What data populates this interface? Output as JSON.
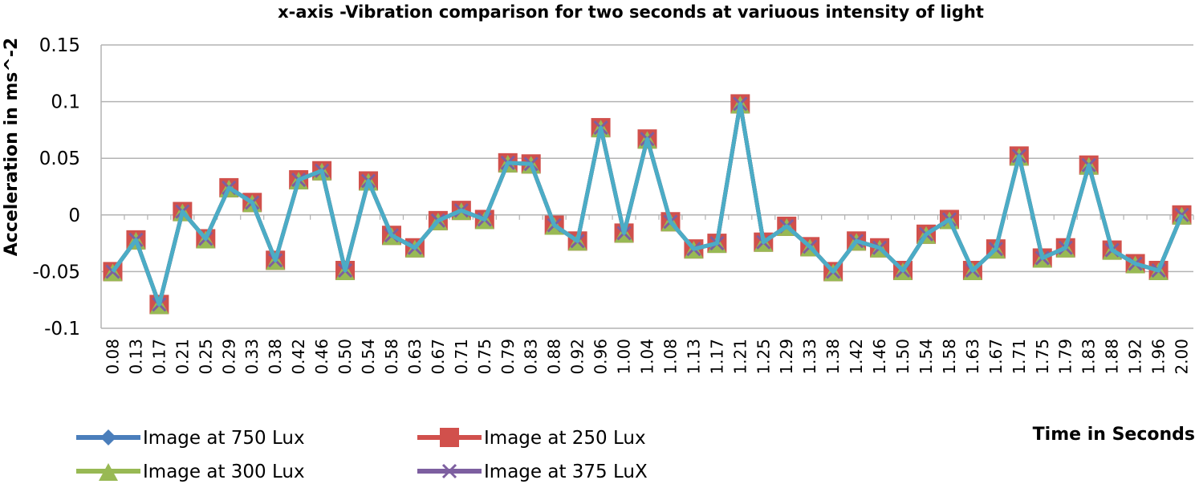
{
  "chart_data": {
    "type": "line",
    "title": "x-axis -Vibration comparison for two seconds at variuous intensity of light",
    "xlabel": "Time in Seconds",
    "ylabel": "Acceleration in ms^-2",
    "ylim": [
      -0.1,
      0.15
    ],
    "yticks": [
      "0.15",
      "0.1",
      "0.05",
      "0",
      "-0.05",
      "-0.1"
    ],
    "ytick_values": [
      0.15,
      0.1,
      0.05,
      0,
      -0.05,
      -0.1
    ],
    "grid": true,
    "legend_position": "bottom",
    "categories": [
      "0.08",
      "0.13",
      "0.17",
      "0.21",
      "0.25",
      "0.29",
      "0.33",
      "0.38",
      "0.42",
      "0.46",
      "0.50",
      "0.54",
      "0.58",
      "0.63",
      "0.67",
      "0.71",
      "0.75",
      "0.79",
      "0.83",
      "0.88",
      "0.92",
      "0.96",
      "1.00",
      "1.04",
      "1.08",
      "1.13",
      "1.17",
      "1.21",
      "1.25",
      "1.29",
      "1.33",
      "1.38",
      "1.42",
      "1.46",
      "1.50",
      "1.54",
      "1.58",
      "1.63",
      "1.67",
      "1.71",
      "1.75",
      "1.79",
      "1.83",
      "1.88",
      "1.92",
      "1.96",
      "2.00"
    ],
    "series": [
      {
        "name": "Image at 750 Lux",
        "color": "#4a7ebb",
        "marker": "diamond",
        "values": [
          -0.05,
          -0.022,
          -0.079,
          0.003,
          -0.021,
          0.024,
          0.011,
          -0.04,
          0.031,
          0.039,
          -0.049,
          0.03,
          -0.018,
          -0.029,
          -0.005,
          0.004,
          -0.004,
          0.046,
          0.045,
          -0.009,
          -0.023,
          0.077,
          -0.016,
          0.067,
          -0.006,
          -0.03,
          -0.025,
          0.098,
          -0.024,
          -0.01,
          -0.028,
          -0.05,
          -0.023,
          -0.029,
          -0.049,
          -0.017,
          -0.004,
          -0.049,
          -0.03,
          0.052,
          -0.038,
          -0.029,
          0.044,
          -0.031,
          -0.043,
          -0.049,
          0.0
        ]
      },
      {
        "name": "Image at 250 Lux",
        "color": "#d1504c",
        "marker": "square",
        "values": [
          -0.05,
          -0.022,
          -0.079,
          0.003,
          -0.021,
          0.024,
          0.011,
          -0.04,
          0.031,
          0.039,
          -0.049,
          0.03,
          -0.018,
          -0.029,
          -0.005,
          0.004,
          -0.004,
          0.046,
          0.045,
          -0.009,
          -0.023,
          0.077,
          -0.016,
          0.067,
          -0.006,
          -0.03,
          -0.025,
          0.098,
          -0.024,
          -0.01,
          -0.028,
          -0.05,
          -0.023,
          -0.029,
          -0.049,
          -0.017,
          -0.004,
          -0.049,
          -0.03,
          0.052,
          -0.038,
          -0.029,
          0.044,
          -0.031,
          -0.043,
          -0.049,
          0.0
        ]
      },
      {
        "name": "Image at 300 Lux",
        "color": "#98b954",
        "marker": "triangle",
        "values": [
          -0.05,
          -0.022,
          -0.079,
          0.003,
          -0.021,
          0.024,
          0.011,
          -0.04,
          0.031,
          0.039,
          -0.049,
          0.03,
          -0.018,
          -0.029,
          -0.005,
          0.004,
          -0.004,
          0.046,
          0.045,
          -0.009,
          -0.023,
          0.077,
          -0.016,
          0.067,
          -0.006,
          -0.03,
          -0.025,
          0.098,
          -0.024,
          -0.01,
          -0.028,
          -0.05,
          -0.023,
          -0.029,
          -0.049,
          -0.017,
          -0.004,
          -0.049,
          -0.03,
          0.052,
          -0.038,
          -0.029,
          0.044,
          -0.031,
          -0.043,
          -0.049,
          0.0
        ]
      },
      {
        "name": "Image at 375 LuX",
        "color": "#7d5fa0",
        "marker": "x",
        "values": [
          -0.05,
          -0.022,
          -0.079,
          0.003,
          -0.021,
          0.024,
          0.011,
          -0.04,
          0.031,
          0.039,
          -0.049,
          0.03,
          -0.018,
          -0.029,
          -0.005,
          0.004,
          -0.004,
          0.046,
          0.045,
          -0.009,
          -0.023,
          0.077,
          -0.016,
          0.067,
          -0.006,
          -0.03,
          -0.025,
          0.098,
          -0.024,
          -0.01,
          -0.028,
          -0.05,
          -0.023,
          -0.029,
          -0.049,
          -0.017,
          -0.004,
          -0.049,
          -0.03,
          0.052,
          -0.038,
          -0.029,
          0.044,
          -0.031,
          -0.043,
          -0.049,
          0.0
        ]
      },
      {
        "name": "",
        "color": "#4bacc6",
        "marker": "none",
        "values": [
          -0.05,
          -0.022,
          -0.079,
          0.003,
          -0.021,
          0.024,
          0.011,
          -0.04,
          0.031,
          0.039,
          -0.049,
          0.03,
          -0.018,
          -0.029,
          -0.005,
          0.004,
          -0.004,
          0.046,
          0.045,
          -0.009,
          -0.023,
          0.077,
          -0.016,
          0.067,
          -0.006,
          -0.03,
          -0.025,
          0.098,
          -0.024,
          -0.01,
          -0.028,
          -0.05,
          -0.023,
          -0.029,
          -0.049,
          -0.017,
          -0.004,
          -0.049,
          -0.03,
          0.052,
          -0.038,
          -0.029,
          0.044,
          -0.031,
          -0.043,
          -0.049,
          0.0
        ]
      }
    ]
  }
}
